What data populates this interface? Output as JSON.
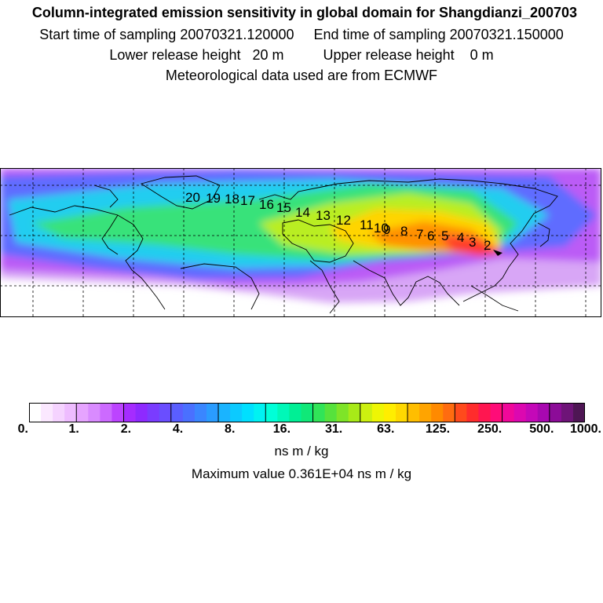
{
  "header": {
    "title": "Column-integrated emission sensitivity in global domain for Shangdianzi_200703",
    "start_label": "Start time of sampling 20070321.120000",
    "end_label": "End time of sampling 20070321.150000",
    "lower_label": "Lower release height   20 m",
    "upper_label": "Upper release height    0 m",
    "met_label": "Meteorological data used are from ECMWF"
  },
  "map": {
    "trajectory_labels": [
      "20",
      "19",
      "18",
      "17",
      "16",
      "15",
      "14",
      "13",
      "12",
      "11",
      "10",
      "9",
      "8",
      "7",
      "6",
      "5",
      "4",
      "3",
      "2"
    ],
    "colors": {
      "land_outline": "#000000",
      "grid": "#000000",
      "background": "#ffffff"
    }
  },
  "colorbar": {
    "colors": [
      "#ffffff",
      "#fbe8ff",
      "#f5d3ff",
      "#eebcff",
      "#e6a4ff",
      "#d98bff",
      "#cc6aff",
      "#bc44ff",
      "#a52cff",
      "#8e2aff",
      "#7a3cff",
      "#6a4eff",
      "#5a5eff",
      "#4a70ff",
      "#3a86ff",
      "#2a9cff",
      "#1ab4ff",
      "#0ccaff",
      "#00e0ff",
      "#00f2f2",
      "#00ffd8",
      "#00f8b8",
      "#00ef95",
      "#10e878",
      "#30e458",
      "#56e23c",
      "#7ee428",
      "#a8ea18",
      "#ccf010",
      "#eef604",
      "#ffee00",
      "#ffd800",
      "#ffbe00",
      "#ffa400",
      "#ff8a00",
      "#ff6c10",
      "#ff4a1c",
      "#ff2c2c",
      "#ff1650",
      "#ff0c78",
      "#f0089a",
      "#dc08b0",
      "#c408b8",
      "#a808b0",
      "#8c0c98",
      "#6e1478",
      "#4e1654"
    ],
    "tick_labels": [
      "0.",
      "1.",
      "2.",
      "4.",
      "8.",
      "16.",
      "31.",
      "63.",
      "125.",
      "250.",
      "500.",
      "1000."
    ],
    "units": "ns m / kg",
    "max_value": "Maximum value  0.361E+04 ns m / kg"
  }
}
